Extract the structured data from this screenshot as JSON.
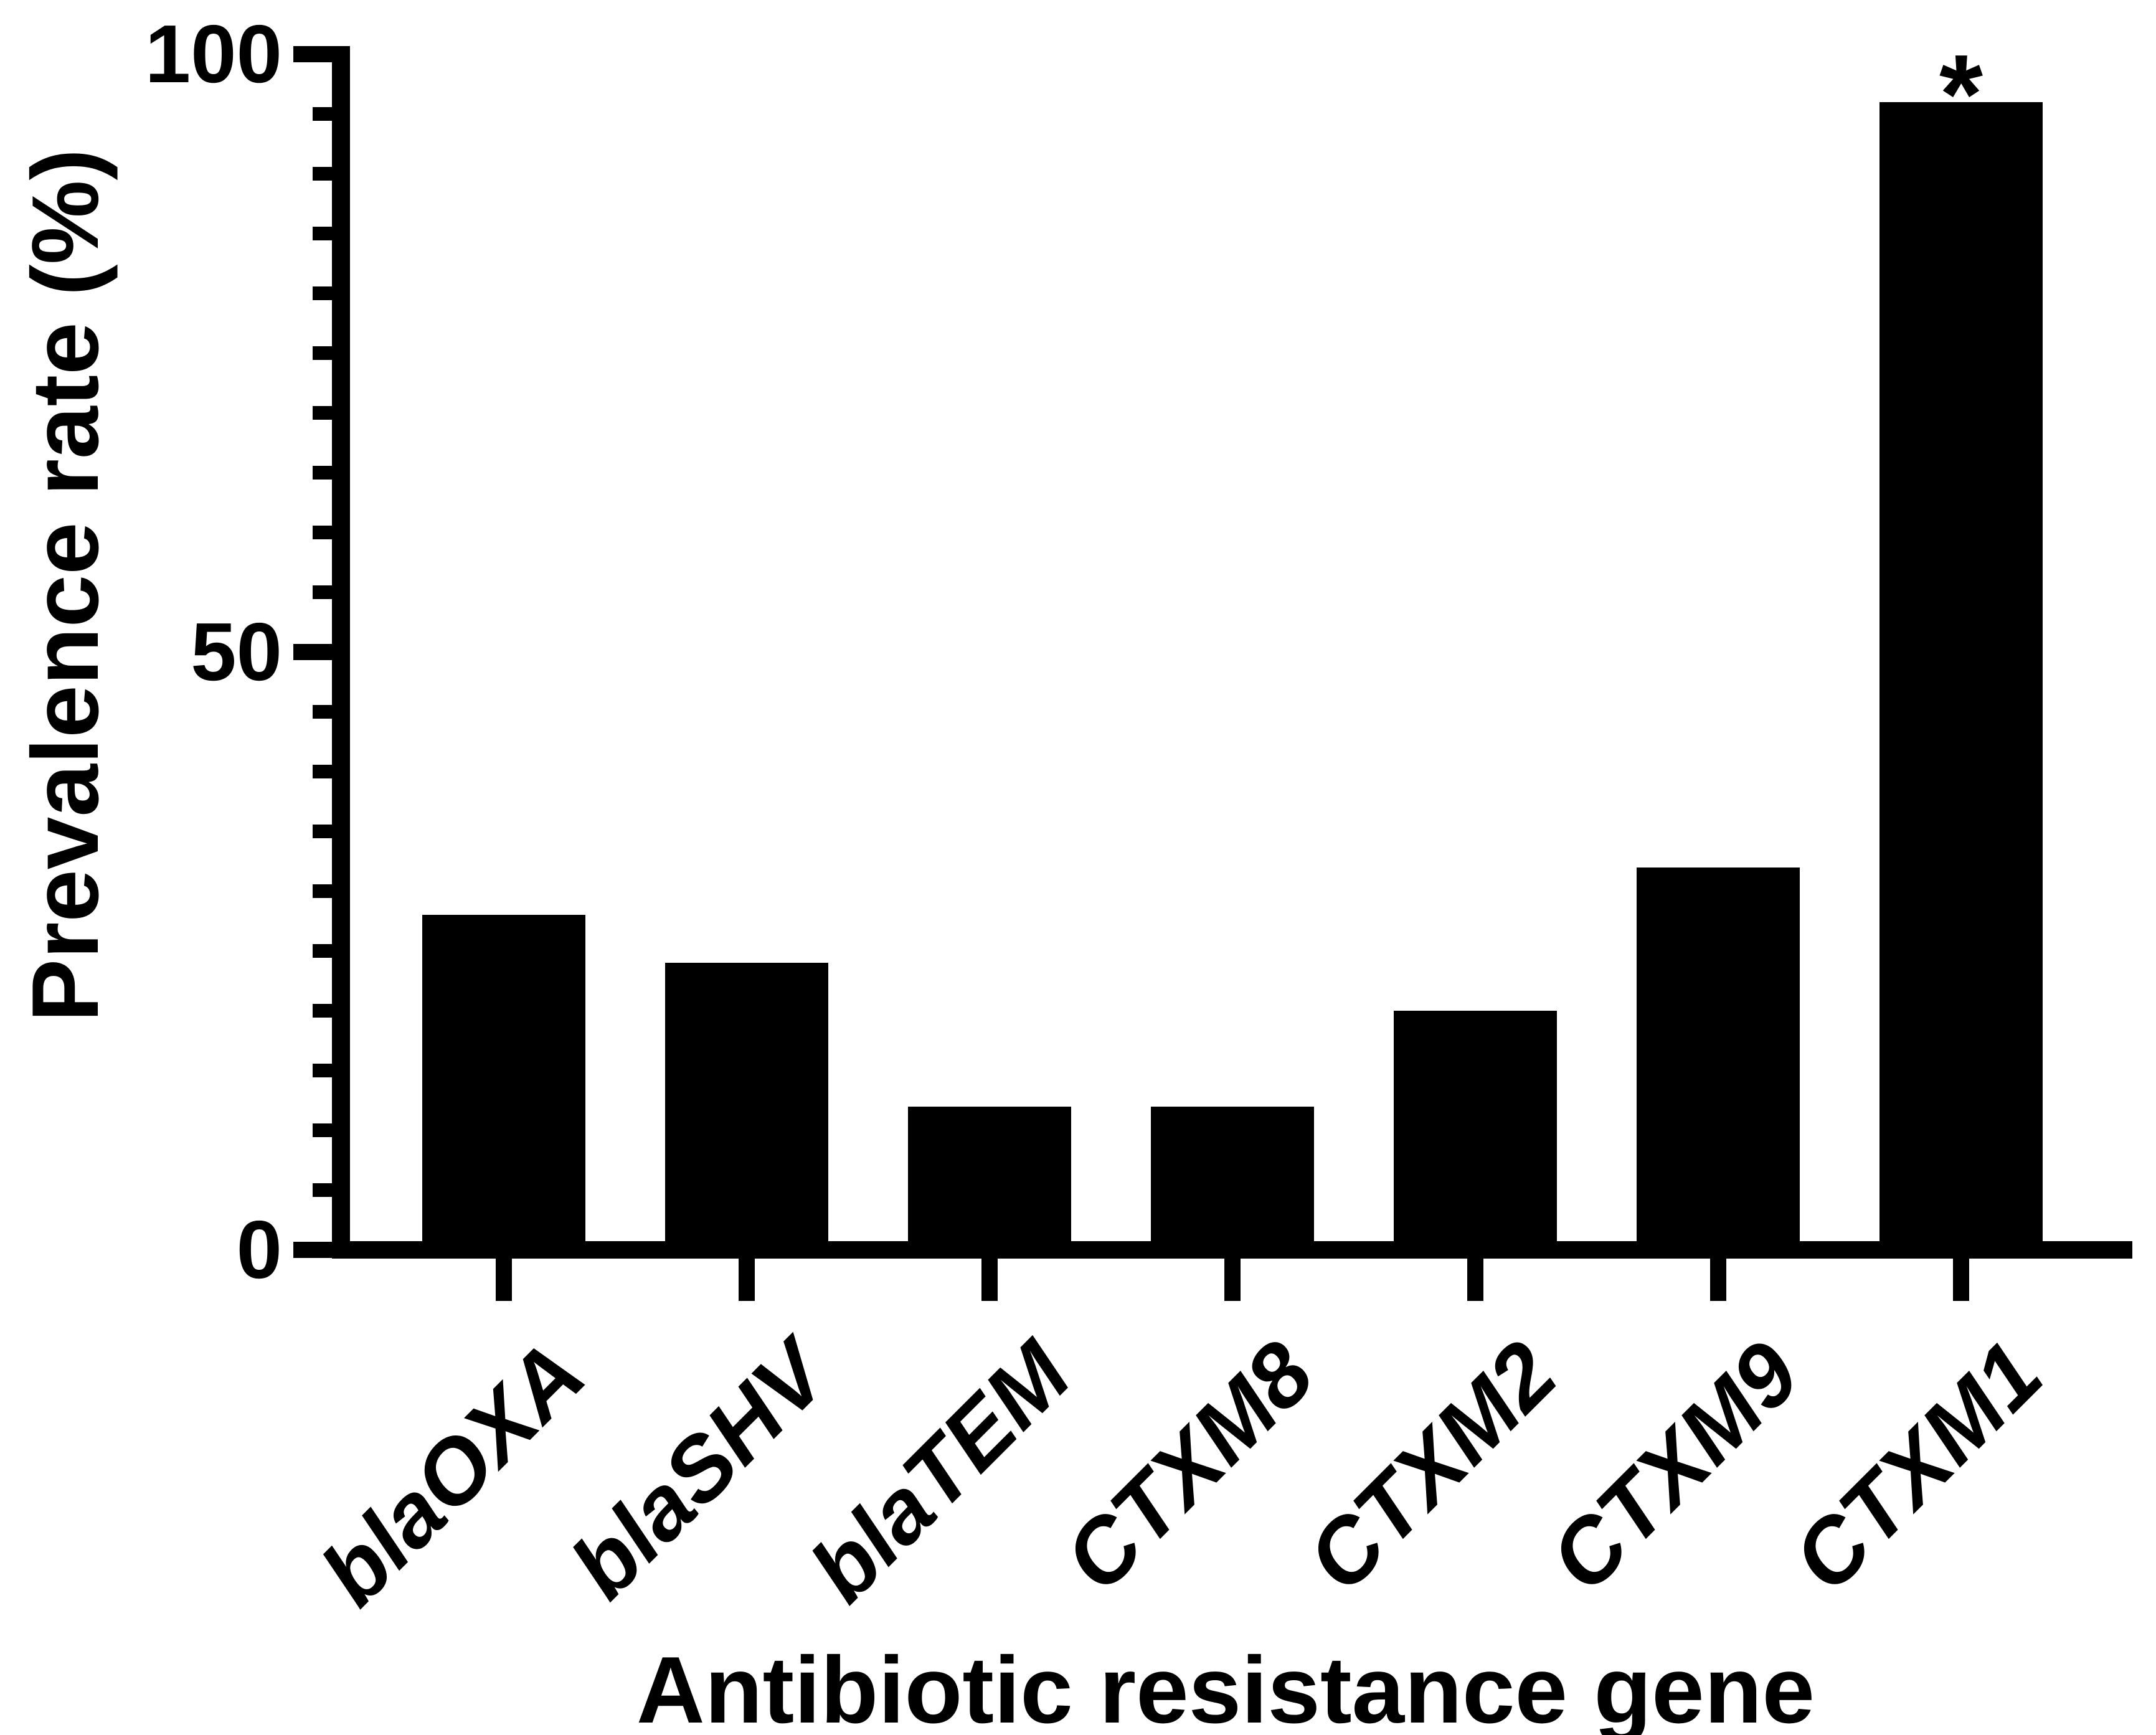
{
  "figure": {
    "y_axis_title": "Prevalence rate (%)",
    "x_axis_title": "Antibiotic resistance gene"
  },
  "chart_data": {
    "type": "bar",
    "title": "",
    "categories": [
      "blaOXA",
      "blaSHV",
      "blaTEM",
      "CTXM8",
      "CTXM2",
      "CTXM9",
      "CTXM1"
    ],
    "values": [
      28,
      24,
      12,
      12,
      20,
      32,
      96
    ],
    "xlabel": "Antibiotic resistance gene",
    "ylabel": "Prevalence rate (%)",
    "ylim": [
      0,
      100
    ],
    "ytick_values": [
      0,
      50,
      100
    ],
    "ytick_labels": [
      "0",
      "50",
      "100"
    ],
    "minor_tick_step": 5,
    "grid": false,
    "legend": false,
    "bar_color": "#000000",
    "background_color": "#ffffff",
    "annotations": [
      {
        "text": "*",
        "category": "CTXM1"
      }
    ]
  }
}
